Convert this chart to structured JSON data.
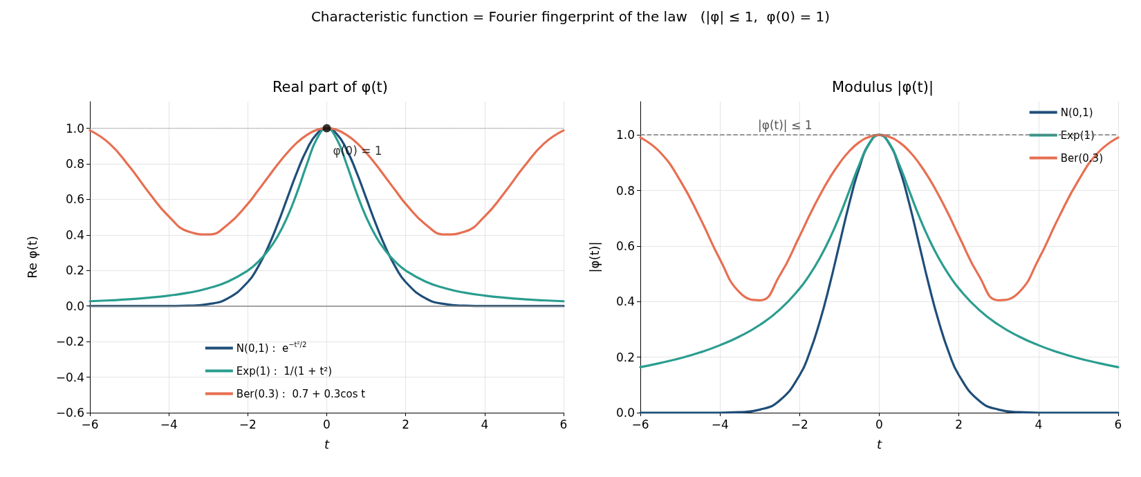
{
  "chart_data": [
    {
      "type": "line",
      "title": "Real part of φ(t)",
      "xlabel": "t",
      "ylabel": "Re φ(t)",
      "annotations": [
        "Characteristic function = Fourier fingerprint of the law   (|φ| ≤ 1,  φ(0) = 1)",
        {
          "text": "φ(0) = 1",
          "x": 0,
          "y": 1
        }
      ],
      "x": [
        -6,
        -5.5,
        -5,
        -4.5,
        -4,
        -3.5,
        -3,
        -2.5,
        -2,
        -1.75,
        -1.5,
        -1.25,
        -1,
        -0.75,
        -0.5,
        -0.25,
        0,
        0.25,
        0.5,
        0.75,
        1,
        1.25,
        1.5,
        1.75,
        2,
        2.5,
        3,
        3.5,
        4,
        4.5,
        5,
        5.5,
        6
      ],
      "series": [
        {
          "name": "N(0,1) :  e$^{−t²/2}$",
          "color": "#1f4e79",
          "values": [
            0,
            0,
            0,
            0,
            0,
            0.002,
            0.011,
            0.044,
            0.135,
            0.216,
            0.325,
            0.458,
            0.607,
            0.755,
            0.882,
            0.969,
            1,
            0.969,
            0.882,
            0.755,
            0.607,
            0.458,
            0.325,
            0.216,
            0.135,
            0.044,
            0.011,
            0.002,
            0,
            0,
            0,
            0,
            0
          ]
        },
        {
          "name": "Exp(1) :  1/(1 + t²)",
          "color": "#2a9d8f",
          "values": [
            0.027,
            0.032,
            0.038,
            0.047,
            0.059,
            0.075,
            0.1,
            0.138,
            0.2,
            0.246,
            0.308,
            0.39,
            0.5,
            0.64,
            0.8,
            0.941,
            1,
            0.941,
            0.8,
            0.64,
            0.5,
            0.39,
            0.308,
            0.246,
            0.2,
            0.138,
            0.1,
            0.075,
            0.059,
            0.047,
            0.038,
            0.032,
            0.027
          ]
        },
        {
          "name": "Ber(0.3) :  0.7 + 0.3cos t",
          "color": "#e76f51",
          "values": [
            0.988,
            0.913,
            0.785,
            0.637,
            0.504,
            0.419,
            0.403,
            0.46,
            0.575,
            0.647,
            0.721,
            0.795,
            0.862,
            0.92,
            0.963,
            0.991,
            1,
            0.991,
            0.963,
            0.92,
            0.862,
            0.795,
            0.721,
            0.647,
            0.575,
            0.46,
            0.403,
            0.419,
            0.504,
            0.637,
            0.785,
            0.913,
            0.988
          ]
        },
        {
          "type": "scatter",
          "marker": "circle",
          "color": "#000000",
          "x": [
            0
          ],
          "values": [
            1
          ]
        }
      ],
      "xlim": [
        -6,
        6
      ],
      "xticks": [
        {
          "value": -6,
          "label": "−6"
        },
        {
          "value": -4,
          "label": "−4"
        },
        {
          "value": -2,
          "label": "−2"
        },
        0,
        2,
        4,
        6
      ],
      "ylim": [
        -0.6,
        1.15
      ],
      "yticks": [
        {
          "value": -0.6,
          "label": "−0.6"
        },
        {
          "value": -0.4,
          "label": "−0.4"
        },
        {
          "value": -0.2,
          "label": "−0.2"
        },
        {
          "value": 0,
          "label": "0.0"
        },
        0.2,
        0.4,
        0.6,
        0.8,
        {
          "value": 1,
          "label": "1.0"
        }
      ],
      "ref_lines": [
        {
          "axis": "y",
          "value": 1,
          "line_style": "dotted",
          "color": "#888888"
        },
        {
          "axis": "y",
          "value": 0,
          "line_style": "solid",
          "color": "#888888"
        }
      ],
      "grid": true,
      "legend": "bottom",
      "marker": "none",
      "line_style": "solid"
    },
    {
      "type": "line",
      "title": "Modulus |φ(t)|",
      "xlabel": "t",
      "ylabel": "|φ(t)|",
      "x": [
        -6,
        -5.5,
        -5,
        -4.5,
        -4,
        -3.5,
        -3,
        -2.5,
        -2,
        -1.75,
        -1.5,
        -1.25,
        -1,
        -0.75,
        -0.5,
        -0.25,
        0,
        0.25,
        0.5,
        0.75,
        1,
        1.25,
        1.5,
        1.75,
        2,
        2.5,
        3,
        3.5,
        4,
        4.5,
        5,
        5.5,
        6
      ],
      "series": [
        {
          "name": "N(0,1)",
          "color": "#1f4e79",
          "values": [
            0,
            0,
            0,
            0,
            0,
            0.002,
            0.011,
            0.044,
            0.135,
            0.216,
            0.325,
            0.458,
            0.607,
            0.755,
            0.882,
            0.969,
            1,
            0.969,
            0.882,
            0.755,
            0.607,
            0.458,
            0.325,
            0.216,
            0.135,
            0.044,
            0.011,
            0.002,
            0,
            0,
            0,
            0,
            0
          ]
        },
        {
          "name": "Exp(1)",
          "color": "#2a9d8f",
          "values": [
            0.164,
            0.179,
            0.196,
            0.217,
            0.243,
            0.275,
            0.316,
            0.371,
            0.447,
            0.496,
            0.555,
            0.625,
            0.707,
            0.8,
            0.894,
            0.97,
            1,
            0.97,
            0.894,
            0.8,
            0.707,
            0.625,
            0.555,
            0.496,
            0.447,
            0.371,
            0.316,
            0.275,
            0.243,
            0.217,
            0.196,
            0.179,
            0.164
          ]
        },
        {
          "name": "Ber(0.3)",
          "color": "#e76f51",
          "values": [
            0.991,
            0.937,
            0.836,
            0.701,
            0.552,
            0.432,
            0.405,
            0.494,
            0.636,
            0.711,
            0.781,
            0.844,
            0.898,
            0.942,
            0.974,
            0.993,
            1,
            0.993,
            0.974,
            0.942,
            0.898,
            0.844,
            0.781,
            0.711,
            0.636,
            0.494,
            0.405,
            0.432,
            0.552,
            0.701,
            0.836,
            0.937,
            0.991
          ]
        }
      ],
      "xlim": [
        -6,
        6
      ],
      "xticks": [
        {
          "value": -6,
          "label": "−6"
        },
        {
          "value": -4,
          "label": "−4"
        },
        {
          "value": -2,
          "label": "−2"
        },
        0,
        2,
        4,
        6
      ],
      "ylim": [
        0,
        1.12
      ],
      "yticks": [
        {
          "value": 0,
          "label": "0.0"
        },
        0.2,
        0.4,
        0.6,
        0.8,
        {
          "value": 1,
          "label": "1.0"
        }
      ],
      "ref_lines": [
        {
          "axis": "y",
          "value": 1,
          "label": "|φ(t)| ≤ 1",
          "line_style": "dashed",
          "color": "#777777"
        }
      ],
      "grid": true,
      "legend": "top right",
      "marker": "none",
      "line_style": "solid"
    }
  ]
}
